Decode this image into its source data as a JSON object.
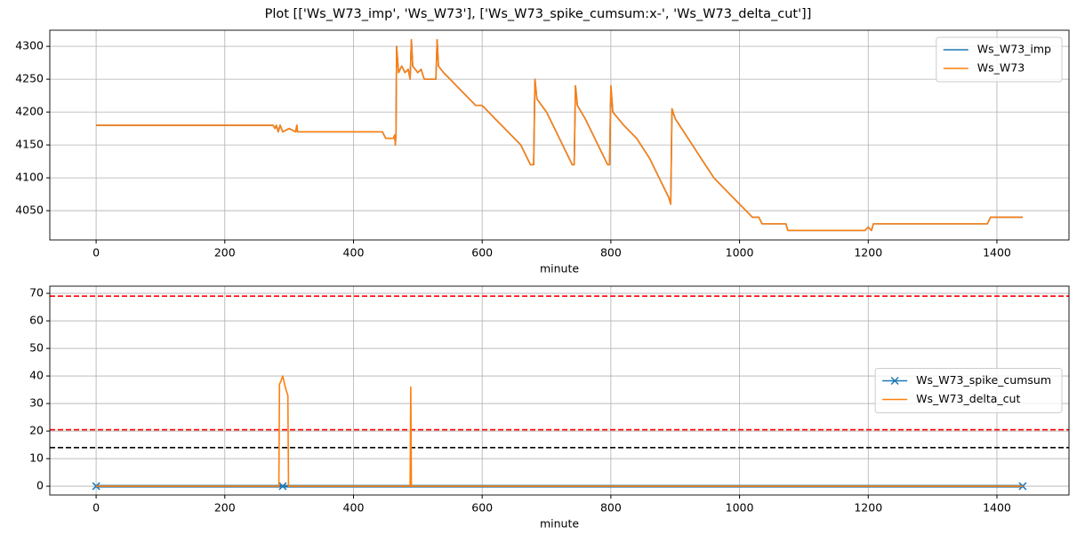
{
  "title": "Plot [['Ws_W73_imp', 'Ws_W73'], ['Ws_W73_spike_cumsum:x-', 'Ws_W73_delta_cut']]",
  "chart_data": [
    {
      "type": "line",
      "xlabel": "minute",
      "grid": true,
      "legend": "upper right",
      "xlim": [
        -72,
        1512
      ],
      "xticks": [
        0,
        200,
        400,
        600,
        800,
        1000,
        1200,
        1400
      ],
      "ylim": [
        4005.5,
        4324.5
      ],
      "yticks": [
        4050,
        4100,
        4150,
        4200,
        4250,
        4300
      ],
      "x": [
        0,
        275,
        278,
        280,
        283,
        286,
        290,
        300,
        310,
        312,
        313,
        445,
        450,
        462,
        464,
        465,
        466,
        467,
        470,
        475,
        480,
        485,
        488,
        490,
        492,
        500,
        505,
        510,
        528,
        530,
        532,
        540,
        550,
        560,
        570,
        580,
        590,
        600,
        610,
        620,
        630,
        640,
        650,
        660,
        670,
        675,
        680,
        682,
        685,
        700,
        710,
        720,
        730,
        740,
        743,
        745,
        748,
        760,
        770,
        780,
        795,
        798,
        800,
        803,
        820,
        840,
        860,
        870,
        880,
        890,
        893,
        895,
        900,
        920,
        940,
        960,
        980,
        1000,
        1010,
        1020,
        1030,
        1035,
        1072,
        1075,
        1195,
        1200,
        1205,
        1208,
        1385,
        1390,
        1440
      ],
      "series": [
        {
          "name": "Ws_W73_imp",
          "color": "#1f77b4",
          "values": [
            4180,
            4180,
            4175,
            4180,
            4170,
            4180,
            4170,
            4175,
            4170,
            4180,
            4170,
            4170,
            4160,
            4160,
            4165,
            4150,
            4165,
            4300,
            4260,
            4270,
            4260,
            4265,
            4250,
            4310,
            4270,
            4260,
            4265,
            4250,
            4250,
            4310,
            4270,
            4260,
            4250,
            4240,
            4230,
            4220,
            4210,
            4210,
            4200,
            4190,
            4180,
            4170,
            4160,
            4150,
            4130,
            4120,
            4120,
            4250,
            4220,
            4200,
            4180,
            4160,
            4140,
            4120,
            4120,
            4240,
            4210,
            4190,
            4170,
            4150,
            4120,
            4120,
            4240,
            4200,
            4180,
            4160,
            4130,
            4110,
            4090,
            4070,
            4060,
            4205,
            4190,
            4160,
            4130,
            4100,
            4080,
            4060,
            4050,
            4040,
            4040,
            4030,
            4030,
            4020,
            4020,
            4025,
            4020,
            4030,
            4030,
            4040,
            4040
          ]
        },
        {
          "name": "Ws_W73",
          "color": "#ff7f0e",
          "values": [
            4180,
            4180,
            4175,
            4180,
            4170,
            4180,
            4170,
            4175,
            4170,
            4180,
            4170,
            4170,
            4160,
            4160,
            4165,
            4150,
            4165,
            4300,
            4260,
            4270,
            4260,
            4265,
            4250,
            4310,
            4270,
            4260,
            4265,
            4250,
            4250,
            4310,
            4270,
            4260,
            4250,
            4240,
            4230,
            4220,
            4210,
            4210,
            4200,
            4190,
            4180,
            4170,
            4160,
            4150,
            4130,
            4120,
            4120,
            4250,
            4220,
            4200,
            4180,
            4160,
            4140,
            4120,
            4120,
            4240,
            4210,
            4190,
            4170,
            4150,
            4120,
            4120,
            4240,
            4200,
            4180,
            4160,
            4130,
            4110,
            4090,
            4070,
            4060,
            4205,
            4190,
            4160,
            4130,
            4100,
            4080,
            4060,
            4050,
            4040,
            4040,
            4030,
            4030,
            4020,
            4020,
            4025,
            4020,
            4030,
            4030,
            4040,
            4040
          ]
        }
      ]
    },
    {
      "type": "line",
      "xlabel": "minute",
      "grid": true,
      "legend": "center right",
      "xlim": [
        -72,
        1512
      ],
      "xticks": [
        0,
        200,
        400,
        600,
        800,
        1000,
        1200,
        1400
      ],
      "ylim": [
        -3.2,
        72.6
      ],
      "yticks": [
        0,
        10,
        20,
        30,
        40,
        50,
        60,
        70
      ],
      "hlines": [
        {
          "value": 69,
          "color": "#ff0000"
        },
        {
          "value": 20.5,
          "color": "#ff0000"
        },
        {
          "value": 14,
          "color": "#000000"
        }
      ],
      "series": [
        {
          "name": "Ws_W73_spike_cumsum",
          "color": "#1f77b4",
          "marker": "x",
          "x": [
            0,
            290,
            1440
          ],
          "values": [
            0,
            0,
            0
          ]
        },
        {
          "name": "Ws_W73_delta_cut",
          "color": "#ff7f0e",
          "x": [
            0,
            284,
            285,
            287,
            290,
            295,
            298,
            299,
            488,
            489,
            490,
            1440
          ],
          "values": [
            0,
            0,
            37,
            38,
            40,
            35,
            33,
            0,
            0,
            36,
            0,
            0
          ]
        }
      ]
    }
  ]
}
